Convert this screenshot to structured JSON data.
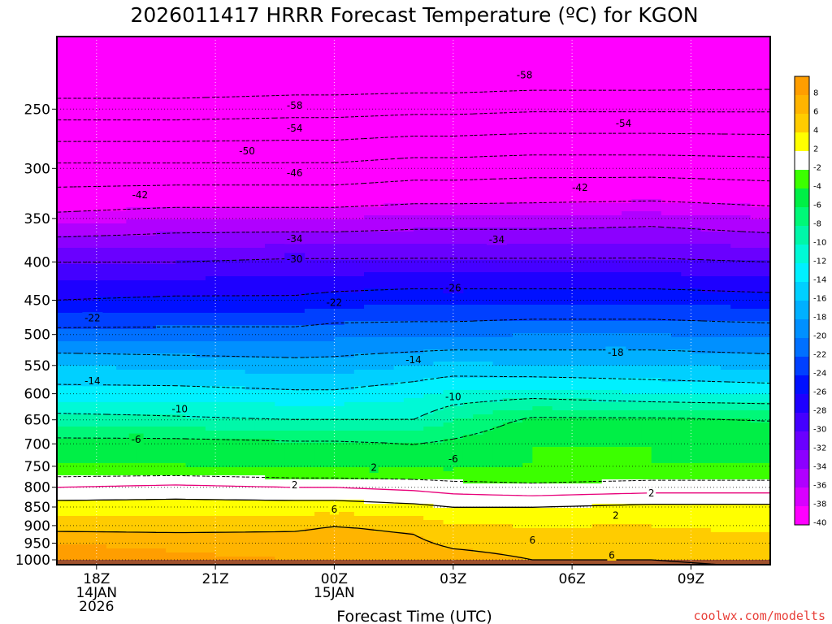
{
  "chart_data": {
    "type": "heatmap",
    "title": "2026011417 HRRR Forecast Temperature (ºC) for KGON",
    "xlabel": "Forecast Time (UTC)",
    "ylabel": "",
    "credit": "coolwx.com/modelts",
    "x_ticks": [
      {
        "hour": 1,
        "lines": [
          "18Z",
          "14JAN",
          "2026"
        ]
      },
      {
        "hour": 4,
        "lines": [
          "21Z"
        ]
      },
      {
        "hour": 7,
        "lines": [
          "00Z",
          "15JAN"
        ]
      },
      {
        "hour": 10,
        "lines": [
          "03Z"
        ]
      },
      {
        "hour": 13,
        "lines": [
          "06Z"
        ]
      },
      {
        "hour": 16,
        "lines": [
          "09Z"
        ]
      }
    ],
    "xlim": [
      0,
      18
    ],
    "pressure_ticks": [
      250,
      300,
      350,
      400,
      450,
      500,
      550,
      600,
      650,
      700,
      750,
      800,
      850,
      900,
      950,
      1000
    ],
    "ylim_hPa": [
      1015,
      200
    ],
    "y_scale": "log",
    "ground_level_hPa": 1000,
    "ground_color": "#a0522d",
    "colorbar_labels": [
      "8",
      "6",
      "4",
      "2",
      "-2",
      "-4",
      "-6",
      "-8",
      "-10",
      "-12",
      "-14",
      "-16",
      "-18",
      "-20",
      "-22",
      "-24",
      "-26",
      "-28",
      "-30",
      "-32",
      "-34",
      "-36",
      "-38",
      "-40"
    ],
    "colorbar_colors": [
      "#ff9e00",
      "#ffb400",
      "#ffcc00",
      "#ffff00",
      "#ffffff",
      "#3cff00",
      "#00ef46",
      "#00f878",
      "#00f7a9",
      "#00f9d6",
      "#00f0ff",
      "#00d0ff",
      "#00b0ff",
      "#0090ff",
      "#0070ff",
      "#0040ff",
      "#0010ff",
      "#1e00ff",
      "#4400ff",
      "#6a00ff",
      "#8c00ff",
      "#b000ff",
      "#d800ff",
      "#ff00ff"
    ],
    "band_colors": [
      {
        "min": 8,
        "color": "#ff9e00"
      },
      {
        "min": 6,
        "color": "#ffb400"
      },
      {
        "min": 4,
        "color": "#ffcc00"
      },
      {
        "min": 2,
        "color": "#ffff00"
      },
      {
        "min": -2,
        "color": "#ffffff"
      },
      {
        "min": -4,
        "color": "#3cff00"
      },
      {
        "min": -6,
        "color": "#00ef46"
      },
      {
        "min": -8,
        "color": "#00f878"
      },
      {
        "min": -10,
        "color": "#00f7a9"
      },
      {
        "min": -12,
        "color": "#00f9d6"
      },
      {
        "min": -14,
        "color": "#00f0ff"
      },
      {
        "min": -16,
        "color": "#00d0ff"
      },
      {
        "min": -18,
        "color": "#00b0ff"
      },
      {
        "min": -20,
        "color": "#0090ff"
      },
      {
        "min": -22,
        "color": "#0070ff"
      },
      {
        "min": -24,
        "color": "#0040ff"
      },
      {
        "min": -26,
        "color": "#0010ff"
      },
      {
        "min": -28,
        "color": "#1e00ff"
      },
      {
        "min": -30,
        "color": "#4400ff"
      },
      {
        "min": -32,
        "color": "#6a00ff"
      },
      {
        "min": -34,
        "color": "#8c00ff"
      },
      {
        "min": -36,
        "color": "#b000ff"
      },
      {
        "min": -38,
        "color": "#d800ff"
      },
      {
        "min": -999,
        "color": "#ff00ff"
      }
    ],
    "freezing_contour_color": "#e8007a",
    "profile_levels_hPa": [
      1000,
      950,
      900,
      850,
      800,
      750,
      700,
      650,
      600,
      550,
      500,
      450,
      400,
      350,
      300,
      250
    ],
    "profiles": [
      {
        "hour": 0,
        "temps_C": [
          9,
          8,
          5,
          3,
          0,
          -4,
          -5,
          -9,
          -13,
          -16,
          -21,
          -26,
          -30,
          -37,
          -45,
          -56
        ]
      },
      {
        "hour": 3,
        "temps_C": [
          8.5,
          7.5,
          5,
          3,
          0.5,
          -4,
          -5,
          -9.5,
          -13,
          -16.5,
          -21,
          -25.5,
          -30,
          -36,
          -45,
          -56
        ]
      },
      {
        "hour": 6,
        "temps_C": [
          8,
          7,
          5.5,
          3,
          0,
          -4.5,
          -5.5,
          -10,
          -13.5,
          -17,
          -21,
          -25.5,
          -29.5,
          -36,
          -45,
          -55.5
        ]
      },
      {
        "hour": 7,
        "temps_C": [
          8,
          7,
          6,
          3,
          0,
          -4.5,
          -5.5,
          -10,
          -13.5,
          -17,
          -20.5,
          -25,
          -29.5,
          -36,
          -45,
          -55.5
        ]
      },
      {
        "hour": 9,
        "temps_C": [
          7.5,
          6.5,
          5.5,
          2.5,
          -0.5,
          -4.5,
          -6,
          -10,
          -12.5,
          -16,
          -20.5,
          -24.5,
          -29.5,
          -35.5,
          -44,
          -55
        ]
      },
      {
        "hour": 10,
        "temps_C": [
          7,
          5.5,
          4,
          2,
          -1,
          -4.5,
          -5.5,
          -8,
          -11.5,
          -15.5,
          -20.5,
          -24.5,
          -29.5,
          -35.5,
          -44,
          -55
        ]
      },
      {
        "hour": 12,
        "temps_C": [
          6,
          5,
          4,
          2,
          -1.5,
          -4,
          -4,
          -5.5,
          -11,
          -16,
          -20,
          -24.5,
          -29.5,
          -35.5,
          -43.5,
          -54.5
        ]
      },
      {
        "hour": 15,
        "temps_C": [
          6,
          5,
          4,
          2.5,
          -1,
          -4,
          -4,
          -5.5,
          -12,
          -16,
          -20,
          -24.5,
          -29.5,
          -35,
          -43.5,
          -54.5
        ]
      },
      {
        "hour": 18,
        "temps_C": [
          5.5,
          4.5,
          3.5,
          2.5,
          -1,
          -4,
          -4.5,
          -6,
          -12.5,
          -16.5,
          -20.5,
          -25,
          -30,
          -36,
          -44,
          -54.5
        ]
      }
    ],
    "contour_labels": [
      {
        "value": "-58",
        "hour": 6,
        "hPa": 247
      },
      {
        "value": "-58",
        "hour": 11.8,
        "hPa": 225
      },
      {
        "value": "-54",
        "hour": 6,
        "hPa": 265
      },
      {
        "value": "-54",
        "hour": 14.3,
        "hPa": 261
      },
      {
        "value": "-50",
        "hour": 4.8,
        "hPa": 284
      },
      {
        "value": "-46",
        "hour": 6,
        "hPa": 304
      },
      {
        "value": "-42",
        "hour": 2.1,
        "hPa": 325
      },
      {
        "value": "-42",
        "hour": 13.2,
        "hPa": 318
      },
      {
        "value": "-34",
        "hour": 6,
        "hPa": 372
      },
      {
        "value": "-34",
        "hour": 11.1,
        "hPa": 373
      },
      {
        "value": "-30",
        "hour": 6,
        "hPa": 396
      },
      {
        "value": "-26",
        "hour": 10,
        "hPa": 433
      },
      {
        "value": "-22",
        "hour": 0.9,
        "hPa": 475
      },
      {
        "value": "-22",
        "hour": 7,
        "hPa": 453
      },
      {
        "value": "-18",
        "hour": 14.1,
        "hPa": 528
      },
      {
        "value": "-14",
        "hour": 0.9,
        "hPa": 576
      },
      {
        "value": "-14",
        "hour": 9,
        "hPa": 540
      },
      {
        "value": "-10",
        "hour": 3.1,
        "hPa": 628
      },
      {
        "value": "-10",
        "hour": 10,
        "hPa": 605
      },
      {
        "value": "-6",
        "hour": 2,
        "hPa": 690
      },
      {
        "value": "-6",
        "hour": 10,
        "hPa": 733
      },
      {
        "value": "2",
        "hour": 8,
        "hPa": 752
      },
      {
        "value": "2",
        "hour": 6,
        "hPa": 794
      },
      {
        "value": "2",
        "hour": 15,
        "hPa": 814
      },
      {
        "value": "2",
        "hour": 14.1,
        "hPa": 872
      },
      {
        "value": "6",
        "hour": 7,
        "hPa": 855
      },
      {
        "value": "6",
        "hour": 12,
        "hPa": 940
      },
      {
        "value": "6",
        "hour": 14,
        "hPa": 985
      }
    ]
  }
}
